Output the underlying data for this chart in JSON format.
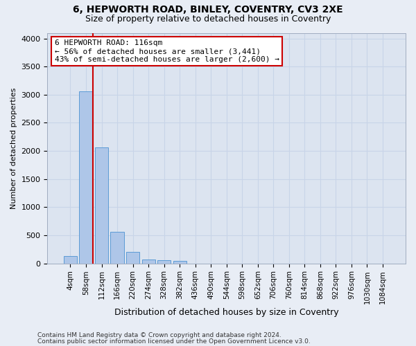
{
  "title1": "6, HEPWORTH ROAD, BINLEY, COVENTRY, CV3 2XE",
  "title2": "Size of property relative to detached houses in Coventry",
  "xlabel": "Distribution of detached houses by size in Coventry",
  "ylabel": "Number of detached properties",
  "footer1": "Contains HM Land Registry data © Crown copyright and database right 2024.",
  "footer2": "Contains public sector information licensed under the Open Government Licence v3.0.",
  "bar_labels": [
    "4sqm",
    "58sqm",
    "112sqm",
    "166sqm",
    "220sqm",
    "274sqm",
    "328sqm",
    "382sqm",
    "436sqm",
    "490sqm",
    "544sqm",
    "598sqm",
    "652sqm",
    "706sqm",
    "760sqm",
    "814sqm",
    "868sqm",
    "922sqm",
    "976sqm",
    "1030sqm",
    "1084sqm"
  ],
  "bar_heights": [
    130,
    3060,
    2060,
    560,
    200,
    75,
    55,
    40,
    0,
    0,
    0,
    0,
    0,
    0,
    0,
    0,
    0,
    0,
    0,
    0,
    0
  ],
  "bar_color": "#aec6e8",
  "bar_edge_color": "#5b9bd5",
  "vline_color": "#cc0000",
  "annotation_line1": "6 HEPWORTH ROAD: 116sqm",
  "annotation_line2": "← 56% of detached houses are smaller (3,441)",
  "annotation_line3": "43% of semi-detached houses are larger (2,600) →",
  "annotation_box_color": "#ffffff",
  "annotation_box_edge": "#cc0000",
  "ylim": [
    0,
    4100
  ],
  "yticks": [
    0,
    500,
    1000,
    1500,
    2000,
    2500,
    3000,
    3500,
    4000
  ],
  "grid_color": "#c8d4e8",
  "bg_color": "#e8edf5",
  "plot_bg_color": "#dce4f0",
  "title1_fontsize": 10,
  "title2_fontsize": 9,
  "ylabel_fontsize": 8,
  "xlabel_fontsize": 9,
  "tick_fontsize": 8,
  "xtick_fontsize": 7.5,
  "footer_fontsize": 6.5
}
